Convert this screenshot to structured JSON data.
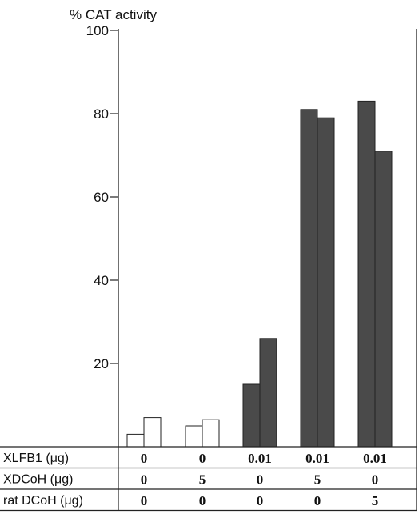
{
  "chart_data": {
    "type": "bar",
    "ylabel": "% CAT activity",
    "ylim": [
      0,
      100
    ],
    "yticks": [
      20,
      40,
      60,
      80,
      100
    ],
    "groups": [
      {
        "values": [
          3,
          7
        ],
        "style": "open"
      },
      {
        "values": [
          5,
          6.5
        ],
        "style": "open"
      },
      {
        "values": [
          15,
          26
        ],
        "style": "filled"
      },
      {
        "values": [
          81,
          79
        ],
        "style": "filled"
      },
      {
        "values": [
          83,
          71
        ],
        "style": "filled"
      }
    ],
    "table": {
      "rows": [
        {
          "label": "XLFB1 (μg)",
          "values": [
            "0",
            "0",
            "0.01",
            "0.01",
            "0.01"
          ]
        },
        {
          "label": "XDCoH (μg)",
          "values": [
            "0",
            "5",
            "0",
            "5",
            "0"
          ]
        },
        {
          "label": "rat DCoH (μg)",
          "values": [
            "0",
            "0",
            "0",
            "0",
            "5"
          ]
        }
      ]
    },
    "colors": {
      "open_fill": "#ffffff",
      "filled_fill": "#4a4a4a",
      "stroke": "#222222"
    }
  }
}
